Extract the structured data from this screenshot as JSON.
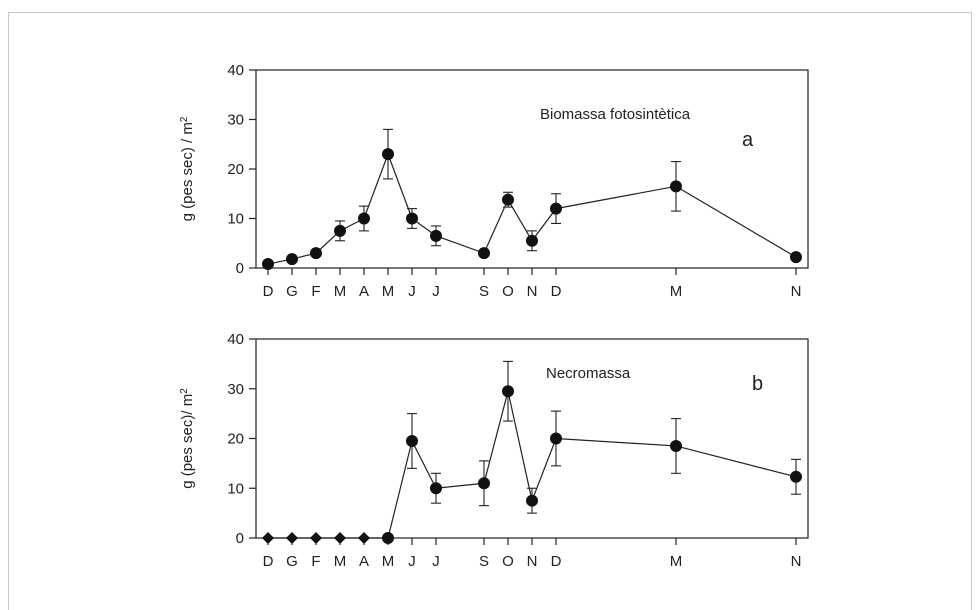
{
  "chart_data": [
    {
      "type": "line",
      "panel_letter": "a",
      "annotation": "Biomassa fotosintètica",
      "ylabel": "g (pes sec) / m",
      "ylabel_sup": "2",
      "ylim": [
        0,
        40
      ],
      "yticks": [
        0,
        10,
        20,
        30,
        40
      ],
      "x_tick_labels": [
        "D",
        "G",
        "F",
        "M",
        "A",
        "M",
        "J",
        "J",
        "S",
        "O",
        "N",
        "D",
        "M",
        "N"
      ],
      "x_tick_positions": [
        0,
        1,
        2,
        3,
        4,
        5,
        6,
        7,
        9,
        10,
        11,
        12,
        17,
        22
      ],
      "xlim": [
        -0.5,
        22.5
      ],
      "marker": "circle",
      "series": [
        {
          "x": [
            0,
            1,
            2,
            3,
            4,
            5,
            6,
            7,
            9,
            10,
            11,
            12,
            17,
            22
          ],
          "y": [
            0.8,
            1.8,
            3,
            7.5,
            10,
            23,
            10,
            6.5,
            3,
            13.8,
            5.5,
            12,
            16.5,
            2.2
          ],
          "err": [
            0,
            0,
            0,
            2,
            2.5,
            5,
            2,
            2,
            0,
            1.5,
            2,
            3,
            5,
            0
          ]
        }
      ]
    },
    {
      "type": "line",
      "panel_letter": "b",
      "annotation": "Necromassa",
      "ylabel": "g (pes sec)/ m",
      "ylabel_sup": "2",
      "ylim": [
        0,
        40
      ],
      "yticks": [
        0,
        10,
        20,
        30,
        40
      ],
      "x_tick_labels": [
        "D",
        "G",
        "F",
        "M",
        "A",
        "M",
        "J",
        "J",
        "S",
        "O",
        "N",
        "D",
        "M",
        "N"
      ],
      "x_tick_positions": [
        0,
        1,
        2,
        3,
        4,
        5,
        6,
        7,
        9,
        10,
        11,
        12,
        17,
        22
      ],
      "xlim": [
        -0.5,
        22.5
      ],
      "series": [
        {
          "x": [
            0,
            1,
            2,
            3,
            4,
            5
          ],
          "y": [
            0,
            0,
            0,
            0,
            0,
            0
          ],
          "err": [
            0,
            0,
            0,
            0,
            0,
            0
          ],
          "marker": "diamond"
        },
        {
          "x": [
            5,
            6,
            7,
            9,
            10,
            11,
            12,
            17,
            22
          ],
          "y": [
            0,
            19.5,
            10,
            11,
            29.5,
            7.5,
            20,
            18.5,
            12.3
          ],
          "err": [
            0,
            5.5,
            3,
            4.5,
            6,
            2.5,
            5.5,
            5.5,
            3.5
          ],
          "marker": "circle"
        }
      ]
    }
  ]
}
